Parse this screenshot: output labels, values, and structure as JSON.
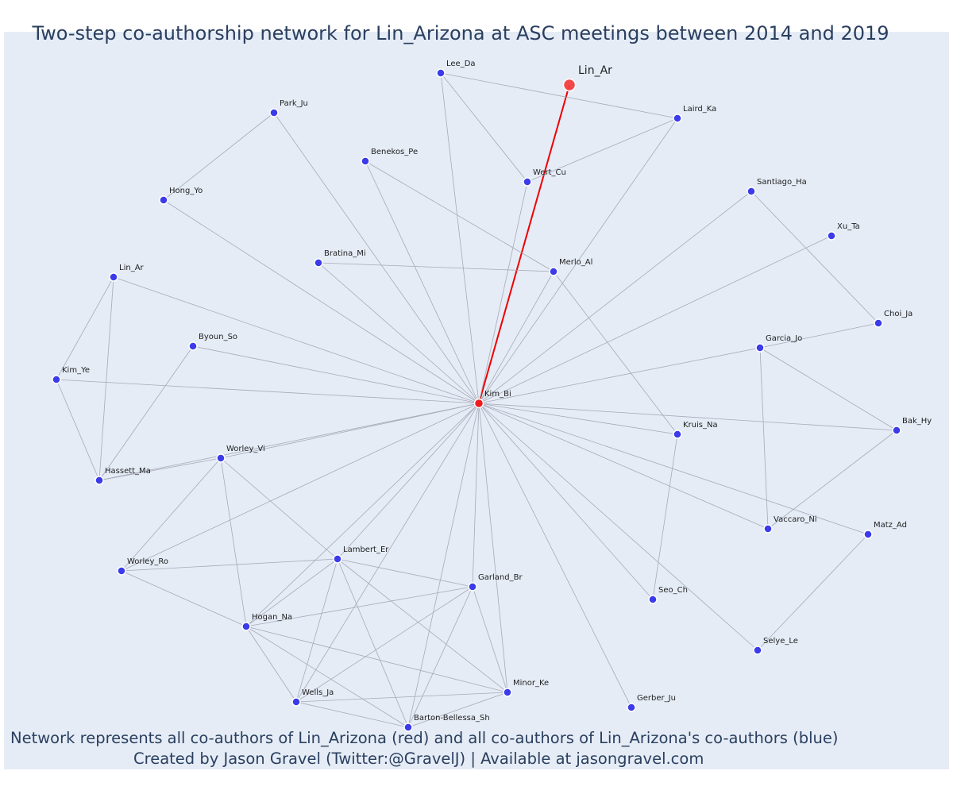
{
  "title": "Two-step co-authorship network for Lin_Arizona at ASC meetings between 2014 and 2019",
  "caption_line1": "Network represents all co-authors of Lin_Arizona (red) and all co-authors of Lin_Arizona's co-authors (blue)",
  "caption_line2": "Created by Jason Gravel (Twitter:@GravelJ) | Available at jasongravel.com",
  "colors": {
    "background": "#e5ecf6",
    "focus_node": "#f44040",
    "coauthor_node": "#ee1c1c",
    "second_step_node": "#3b3bea",
    "focus_edge": "#ee0000",
    "edge": "#a7aab8"
  },
  "focus_label": "Lin_Ar",
  "nodes": [
    {
      "id": "Kim_Bi",
      "label": "Kim_Bi",
      "group": "coauthor"
    },
    {
      "id": "Lee_Da",
      "label": "Lee_Da",
      "group": "second"
    },
    {
      "id": "Laird_Ka",
      "label": "Laird_Ka",
      "group": "second"
    },
    {
      "id": "Park_Ju",
      "label": "Park_Ju",
      "group": "second"
    },
    {
      "id": "Benekos_Pe",
      "label": "Benekos_Pe",
      "group": "second"
    },
    {
      "id": "Wert_Cu",
      "label": "Wert_Cu",
      "group": "second"
    },
    {
      "id": "Hong_Yo",
      "label": "Hong_Yo",
      "group": "second"
    },
    {
      "id": "Santiago_Ha",
      "label": "Santiago_Ha",
      "group": "second"
    },
    {
      "id": "Xu_Ta",
      "label": "Xu_Ta",
      "group": "second"
    },
    {
      "id": "Bratina_Mi",
      "label": "Bratina_Mi",
      "group": "second"
    },
    {
      "id": "Merlo_Al",
      "label": "Merlo_Al",
      "group": "second"
    },
    {
      "id": "Lin_Ar",
      "label": "Lin_Ar",
      "group": "second"
    },
    {
      "id": "Choi_Ja",
      "label": "Choi_Ja",
      "group": "second"
    },
    {
      "id": "Byoun_So",
      "label": "Byoun_So",
      "group": "second"
    },
    {
      "id": "Garcia_Jo",
      "label": "Garcia_Jo",
      "group": "second"
    },
    {
      "id": "Kim_Ye",
      "label": "Kim_Ye",
      "group": "second"
    },
    {
      "id": "Bak_Hy",
      "label": "Bak_Hy",
      "group": "second"
    },
    {
      "id": "Kruis_Na",
      "label": "Kruis_Na",
      "group": "second"
    },
    {
      "id": "Worley_Vi",
      "label": "Worley_Vi",
      "group": "second"
    },
    {
      "id": "Hassett_Ma",
      "label": "Hassett_Ma",
      "group": "second"
    },
    {
      "id": "Vaccaro_Ni",
      "label": "Vaccaro_Ni",
      "group": "second"
    },
    {
      "id": "Matz_Ad",
      "label": "Matz_Ad",
      "group": "second"
    },
    {
      "id": "Lambert_Er",
      "label": "Lambert_Er",
      "group": "second"
    },
    {
      "id": "Worley_Ro",
      "label": "Worley_Ro",
      "group": "second"
    },
    {
      "id": "Garland_Br",
      "label": "Garland_Br",
      "group": "second"
    },
    {
      "id": "Seo_Ch",
      "label": "Seo_Ch",
      "group": "second"
    },
    {
      "id": "Hogan_Na",
      "label": "Hogan_Na",
      "group": "second"
    },
    {
      "id": "Selye_Le",
      "label": "Selye_Le",
      "group": "second"
    },
    {
      "id": "Minor_Ke",
      "label": "Minor_Ke",
      "group": "second"
    },
    {
      "id": "Gerber_Ju",
      "label": "Gerber_Ju",
      "group": "second"
    },
    {
      "id": "Wells_Ja",
      "label": "Wells_Ja",
      "group": "second"
    },
    {
      "id": "Barton-Bellessa_Sh",
      "label": "Barton-Bellessa_Sh",
      "group": "second"
    }
  ],
  "edges": [
    [
      "FOCUS",
      "Kim_Bi"
    ],
    [
      "Kim_Bi",
      "Lee_Da"
    ],
    [
      "Kim_Bi",
      "Laird_Ka"
    ],
    [
      "Kim_Bi",
      "Park_Ju"
    ],
    [
      "Kim_Bi",
      "Benekos_Pe"
    ],
    [
      "Kim_Bi",
      "Wert_Cu"
    ],
    [
      "Kim_Bi",
      "Hong_Yo"
    ],
    [
      "Kim_Bi",
      "Santiago_Ha"
    ],
    [
      "Kim_Bi",
      "Xu_Ta"
    ],
    [
      "Kim_Bi",
      "Bratina_Mi"
    ],
    [
      "Kim_Bi",
      "Merlo_Al"
    ],
    [
      "Kim_Bi",
      "Lin_Ar"
    ],
    [
      "Kim_Bi",
      "Byoun_So"
    ],
    [
      "Kim_Bi",
      "Garcia_Jo"
    ],
    [
      "Kim_Bi",
      "Kim_Ye"
    ],
    [
      "Kim_Bi",
      "Bak_Hy"
    ],
    [
      "Kim_Bi",
      "Kruis_Na"
    ],
    [
      "Kim_Bi",
      "Worley_Vi"
    ],
    [
      "Kim_Bi",
      "Hassett_Ma"
    ],
    [
      "Kim_Bi",
      "Vaccaro_Ni"
    ],
    [
      "Kim_Bi",
      "Matz_Ad"
    ],
    [
      "Kim_Bi",
      "Lambert_Er"
    ],
    [
      "Kim_Bi",
      "Worley_Ro"
    ],
    [
      "Kim_Bi",
      "Garland_Br"
    ],
    [
      "Kim_Bi",
      "Seo_Ch"
    ],
    [
      "Kim_Bi",
      "Hogan_Na"
    ],
    [
      "Kim_Bi",
      "Selye_Le"
    ],
    [
      "Kim_Bi",
      "Minor_Ke"
    ],
    [
      "Kim_Bi",
      "Gerber_Ju"
    ],
    [
      "Kim_Bi",
      "Wells_Ja"
    ],
    [
      "Kim_Bi",
      "Barton-Bellessa_Sh"
    ],
    [
      "Lee_Da",
      "Laird_Ka"
    ],
    [
      "Lee_Da",
      "Wert_Cu"
    ],
    [
      "Laird_Ka",
      "Wert_Cu"
    ],
    [
      "Park_Ju",
      "Hong_Yo"
    ],
    [
      "Benekos_Pe",
      "Merlo_Al"
    ],
    [
      "Bratina_Mi",
      "Merlo_Al"
    ],
    [
      "Merlo_Al",
      "Kruis_Na"
    ],
    [
      "Kruis_Na",
      "Seo_Ch"
    ],
    [
      "Santiago_Ha",
      "Choi_Ja"
    ],
    [
      "Garcia_Jo",
      "Choi_Ja"
    ],
    [
      "Garcia_Jo",
      "Bak_Hy"
    ],
    [
      "Garcia_Jo",
      "Vaccaro_Ni"
    ],
    [
      "Vaccaro_Ni",
      "Bak_Hy"
    ],
    [
      "Matz_Ad",
      "Selye_Le"
    ],
    [
      "Lin_Ar",
      "Kim_Ye"
    ],
    [
      "Lin_Ar",
      "Hassett_Ma"
    ],
    [
      "Kim_Ye",
      "Hassett_Ma"
    ],
    [
      "Byoun_So",
      "Hassett_Ma"
    ],
    [
      "Worley_Vi",
      "Hassett_Ma"
    ],
    [
      "Worley_Vi",
      "Worley_Ro"
    ],
    [
      "Worley_Vi",
      "Hogan_Na"
    ],
    [
      "Worley_Vi",
      "Lambert_Er"
    ],
    [
      "Worley_Ro",
      "Lambert_Er"
    ],
    [
      "Worley_Ro",
      "Hogan_Na"
    ],
    [
      "Lambert_Er",
      "Hogan_Na"
    ],
    [
      "Lambert_Er",
      "Garland_Br"
    ],
    [
      "Lambert_Er",
      "Minor_Ke"
    ],
    [
      "Lambert_Er",
      "Wells_Ja"
    ],
    [
      "Lambert_Er",
      "Barton-Bellessa_Sh"
    ],
    [
      "Garland_Br",
      "Hogan_Na"
    ],
    [
      "Garland_Br",
      "Minor_Ke"
    ],
    [
      "Garland_Br",
      "Wells_Ja"
    ],
    [
      "Garland_Br",
      "Barton-Bellessa_Sh"
    ],
    [
      "Hogan_Na",
      "Minor_Ke"
    ],
    [
      "Hogan_Na",
      "Wells_Ja"
    ],
    [
      "Hogan_Na",
      "Barton-Bellessa_Sh"
    ],
    [
      "Minor_Ke",
      "Wells_Ja"
    ],
    [
      "Minor_Ke",
      "Barton-Bellessa_Sh"
    ],
    [
      "Wells_Ja",
      "Barton-Bellessa_Sh"
    ]
  ]
}
